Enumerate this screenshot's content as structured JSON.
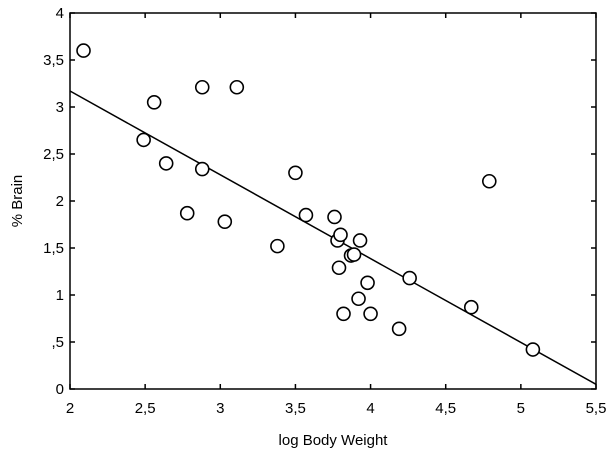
{
  "chart_data": {
    "type": "scatter",
    "xlabel": "log Body Weight",
    "ylabel": "% Brain",
    "xlim": [
      2,
      5.5
    ],
    "ylim": [
      0,
      4
    ],
    "xticks": [
      {
        "value": 2,
        "label": "2"
      },
      {
        "value": 2.5,
        "label": "2,5"
      },
      {
        "value": 3,
        "label": "3"
      },
      {
        "value": 3.5,
        "label": "3,5"
      },
      {
        "value": 4,
        "label": "4"
      },
      {
        "value": 4.5,
        "label": "4,5"
      },
      {
        "value": 5,
        "label": "5"
      },
      {
        "value": 5.5,
        "label": "5,5"
      }
    ],
    "yticks": [
      {
        "value": 0,
        "label": "0"
      },
      {
        "value": 0.5,
        "label": ",5"
      },
      {
        "value": 1,
        "label": "1"
      },
      {
        "value": 1.5,
        "label": "1,5"
      },
      {
        "value": 2,
        "label": "2"
      },
      {
        "value": 2.5,
        "label": "2,5"
      },
      {
        "value": 3,
        "label": "3"
      },
      {
        "value": 3.5,
        "label": "3,5"
      },
      {
        "value": 4,
        "label": "4"
      }
    ],
    "grid": false,
    "points": [
      {
        "x": 2.09,
        "y": 3.6
      },
      {
        "x": 2.49,
        "y": 2.65
      },
      {
        "x": 2.56,
        "y": 3.05
      },
      {
        "x": 2.64,
        "y": 2.4
      },
      {
        "x": 2.78,
        "y": 1.87
      },
      {
        "x": 2.88,
        "y": 3.21
      },
      {
        "x": 2.88,
        "y": 2.34
      },
      {
        "x": 3.03,
        "y": 1.78
      },
      {
        "x": 3.11,
        "y": 3.21
      },
      {
        "x": 3.38,
        "y": 1.52
      },
      {
        "x": 3.5,
        "y": 2.3
      },
      {
        "x": 3.57,
        "y": 1.85
      },
      {
        "x": 3.76,
        "y": 1.83
      },
      {
        "x": 3.78,
        "y": 1.58
      },
      {
        "x": 3.79,
        "y": 1.29
      },
      {
        "x": 3.8,
        "y": 1.64
      },
      {
        "x": 3.82,
        "y": 0.8
      },
      {
        "x": 3.87,
        "y": 1.42
      },
      {
        "x": 3.89,
        "y": 1.43
      },
      {
        "x": 3.92,
        "y": 0.96
      },
      {
        "x": 3.93,
        "y": 1.58
      },
      {
        "x": 3.98,
        "y": 1.13
      },
      {
        "x": 4.0,
        "y": 0.8
      },
      {
        "x": 4.19,
        "y": 0.64
      },
      {
        "x": 4.26,
        "y": 1.18
      },
      {
        "x": 4.67,
        "y": 0.87
      },
      {
        "x": 4.79,
        "y": 2.21
      },
      {
        "x": 5.08,
        "y": 0.42
      }
    ],
    "fit_line": {
      "x": [
        2,
        5.5
      ],
      "y": [
        3.17,
        0.05
      ]
    }
  }
}
